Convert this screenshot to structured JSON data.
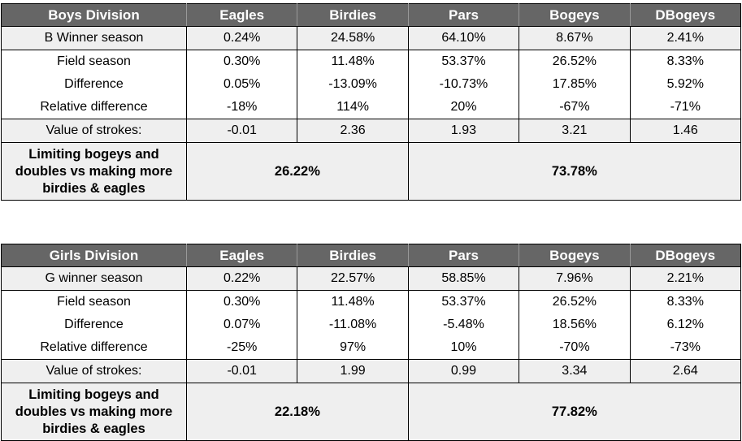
{
  "boys": {
    "header": [
      "Boys Division",
      "Eagles",
      "Birdies",
      "Pars",
      "Bogeys",
      "DBogeys"
    ],
    "rows": [
      [
        "B Winner season",
        "0.24%",
        "24.58%",
        "64.10%",
        "8.67%",
        "2.41%"
      ],
      [
        "Field season",
        "0.30%",
        "11.48%",
        "53.37%",
        "26.52%",
        "8.33%"
      ],
      [
        "Difference",
        "0.05%",
        "-13.09%",
        "-10.73%",
        "17.85%",
        "5.92%"
      ],
      [
        "Relative difference",
        "-18%",
        "114%",
        "20%",
        "-67%",
        "-71%"
      ],
      [
        "Value of strokes:",
        "-0.01",
        "2.36",
        "1.93",
        "3.21",
        "1.46"
      ]
    ],
    "summary": {
      "label": "Limiting bogeys and doubles vs making more birdies & eagles",
      "left_value": "26.22%",
      "right_value": "73.78%"
    }
  },
  "girls": {
    "header": [
      "Girls Division",
      "Eagles",
      "Birdies",
      "Pars",
      "Bogeys",
      "DBogeys"
    ],
    "rows": [
      [
        "G winner season",
        "0.22%",
        "22.57%",
        "58.85%",
        "7.96%",
        "2.21%"
      ],
      [
        "Field season",
        "0.30%",
        "11.48%",
        "53.37%",
        "26.52%",
        "8.33%"
      ],
      [
        "Difference",
        "0.07%",
        "-11.08%",
        "-5.48%",
        "18.56%",
        "6.12%"
      ],
      [
        "Relative difference",
        "-25%",
        "97%",
        "10%",
        "-70%",
        "-73%"
      ],
      [
        "Value of strokes:",
        "-0.01",
        "1.99",
        "0.99",
        "3.34",
        "2.64"
      ]
    ],
    "summary": {
      "label": "Limiting bogeys and doubles vs making more birdies & eagles",
      "left_value": "22.18%",
      "right_value": "77.82%"
    }
  }
}
